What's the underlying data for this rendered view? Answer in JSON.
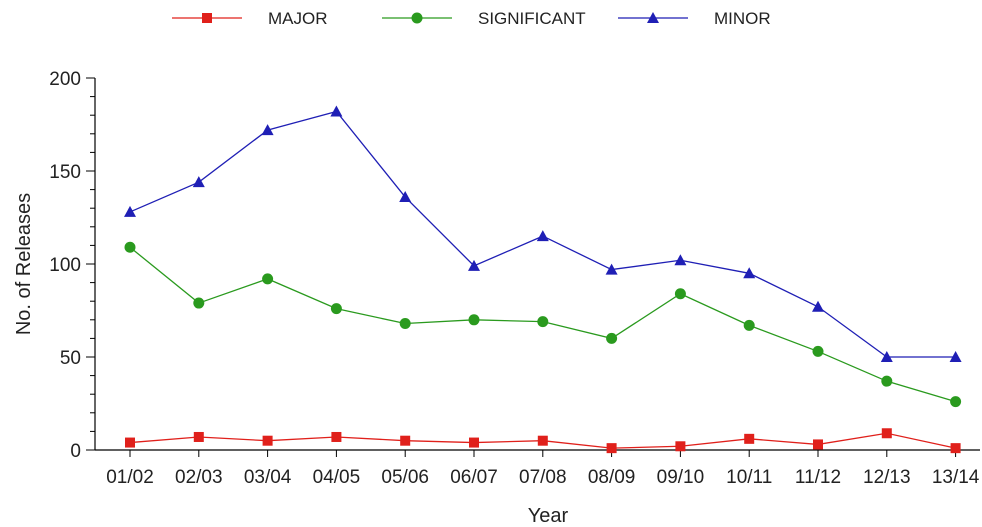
{
  "chart_data": {
    "type": "line",
    "title": "",
    "xlabel": "Year",
    "ylabel": "No. of Releases",
    "categories": [
      "01/02",
      "02/03",
      "03/04",
      "04/05",
      "05/06",
      "06/07",
      "07/08",
      "08/09",
      "09/10",
      "10/11",
      "11/12",
      "12/13",
      "13/14"
    ],
    "ylim": [
      0,
      200
    ],
    "yticks": [
      0,
      50,
      100,
      150,
      200
    ],
    "grid": false,
    "legend_position": "top",
    "series": [
      {
        "name": "MAJOR",
        "color": "#e0201b",
        "marker": "square",
        "values": [
          4,
          7,
          5,
          7,
          5,
          4,
          5,
          1,
          2,
          6,
          3,
          9,
          1
        ]
      },
      {
        "name": "SIGNIFICANT",
        "color": "#2a9a1e",
        "marker": "circle",
        "values": [
          109,
          79,
          92,
          76,
          68,
          70,
          69,
          60,
          84,
          67,
          53,
          37,
          26
        ]
      },
      {
        "name": "MINOR",
        "color": "#1f1fb5",
        "marker": "triangle",
        "values": [
          128,
          144,
          172,
          182,
          136,
          99,
          115,
          97,
          102,
          95,
          77,
          50,
          50
        ]
      }
    ]
  }
}
